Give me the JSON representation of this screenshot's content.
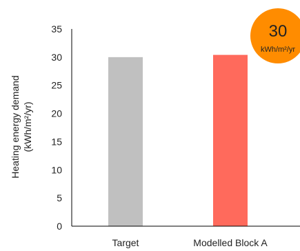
{
  "chart_data": {
    "type": "bar",
    "categories": [
      "Target",
      "Modelled Block A"
    ],
    "values": [
      30,
      30.4
    ],
    "colors": [
      "#c0c0c0",
      "#ff6a5c"
    ],
    "ylabel_line1": "Heating energy demand",
    "ylabel_line2": "(kWh/m²/yr)",
    "ylim": [
      0,
      35
    ],
    "yticks": [
      0,
      5,
      10,
      15,
      20,
      25,
      30,
      35
    ],
    "grid": false
  },
  "badge": {
    "value": "30",
    "unit": "kWh/m²/yr",
    "color": "#ff8c00"
  }
}
